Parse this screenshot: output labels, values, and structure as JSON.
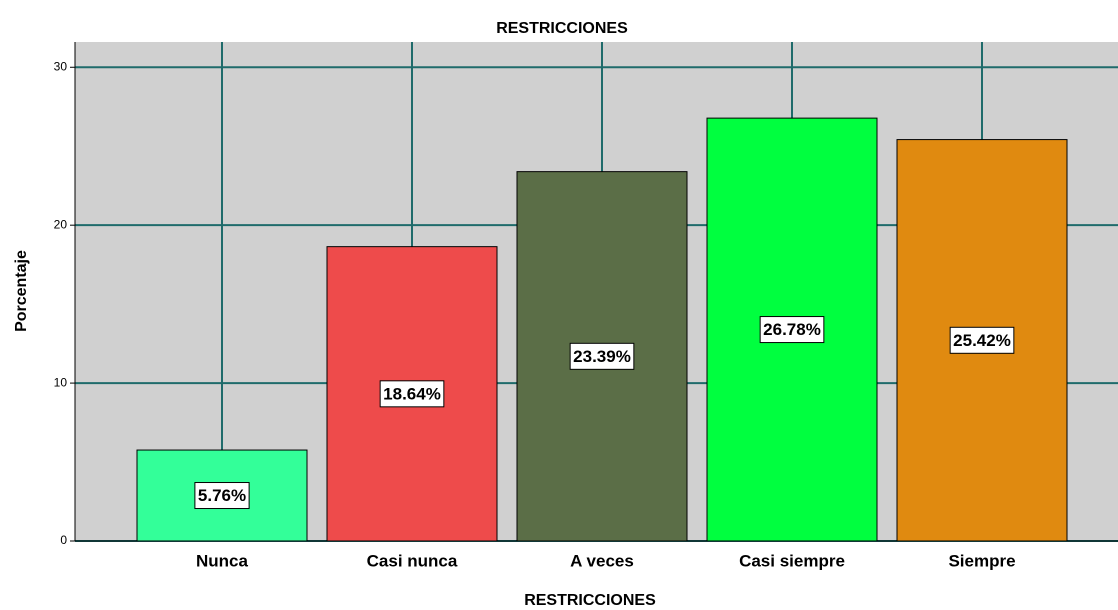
{
  "chart_data": {
    "type": "bar",
    "title": "RESTRICCIONES",
    "x_label": "RESTRICCIONES",
    "y_label": "Porcentaje",
    "categories": [
      "Nunca",
      "Casi nunca",
      "A veces",
      "Casi siempre",
      "Siempre"
    ],
    "values": [
      5.76,
      18.64,
      23.39,
      26.78,
      25.42
    ],
    "value_labels": [
      "5.76%",
      "18.64%",
      "23.39%",
      "26.78%",
      "25.42%"
    ],
    "colors": [
      "#33ff99",
      "#ee4b4b",
      "#5b6e47",
      "#00ff3f",
      "#e08a10"
    ],
    "ylim": [
      0,
      31.6
    ],
    "yticks": [
      0,
      10,
      20,
      30
    ],
    "grid": true
  }
}
